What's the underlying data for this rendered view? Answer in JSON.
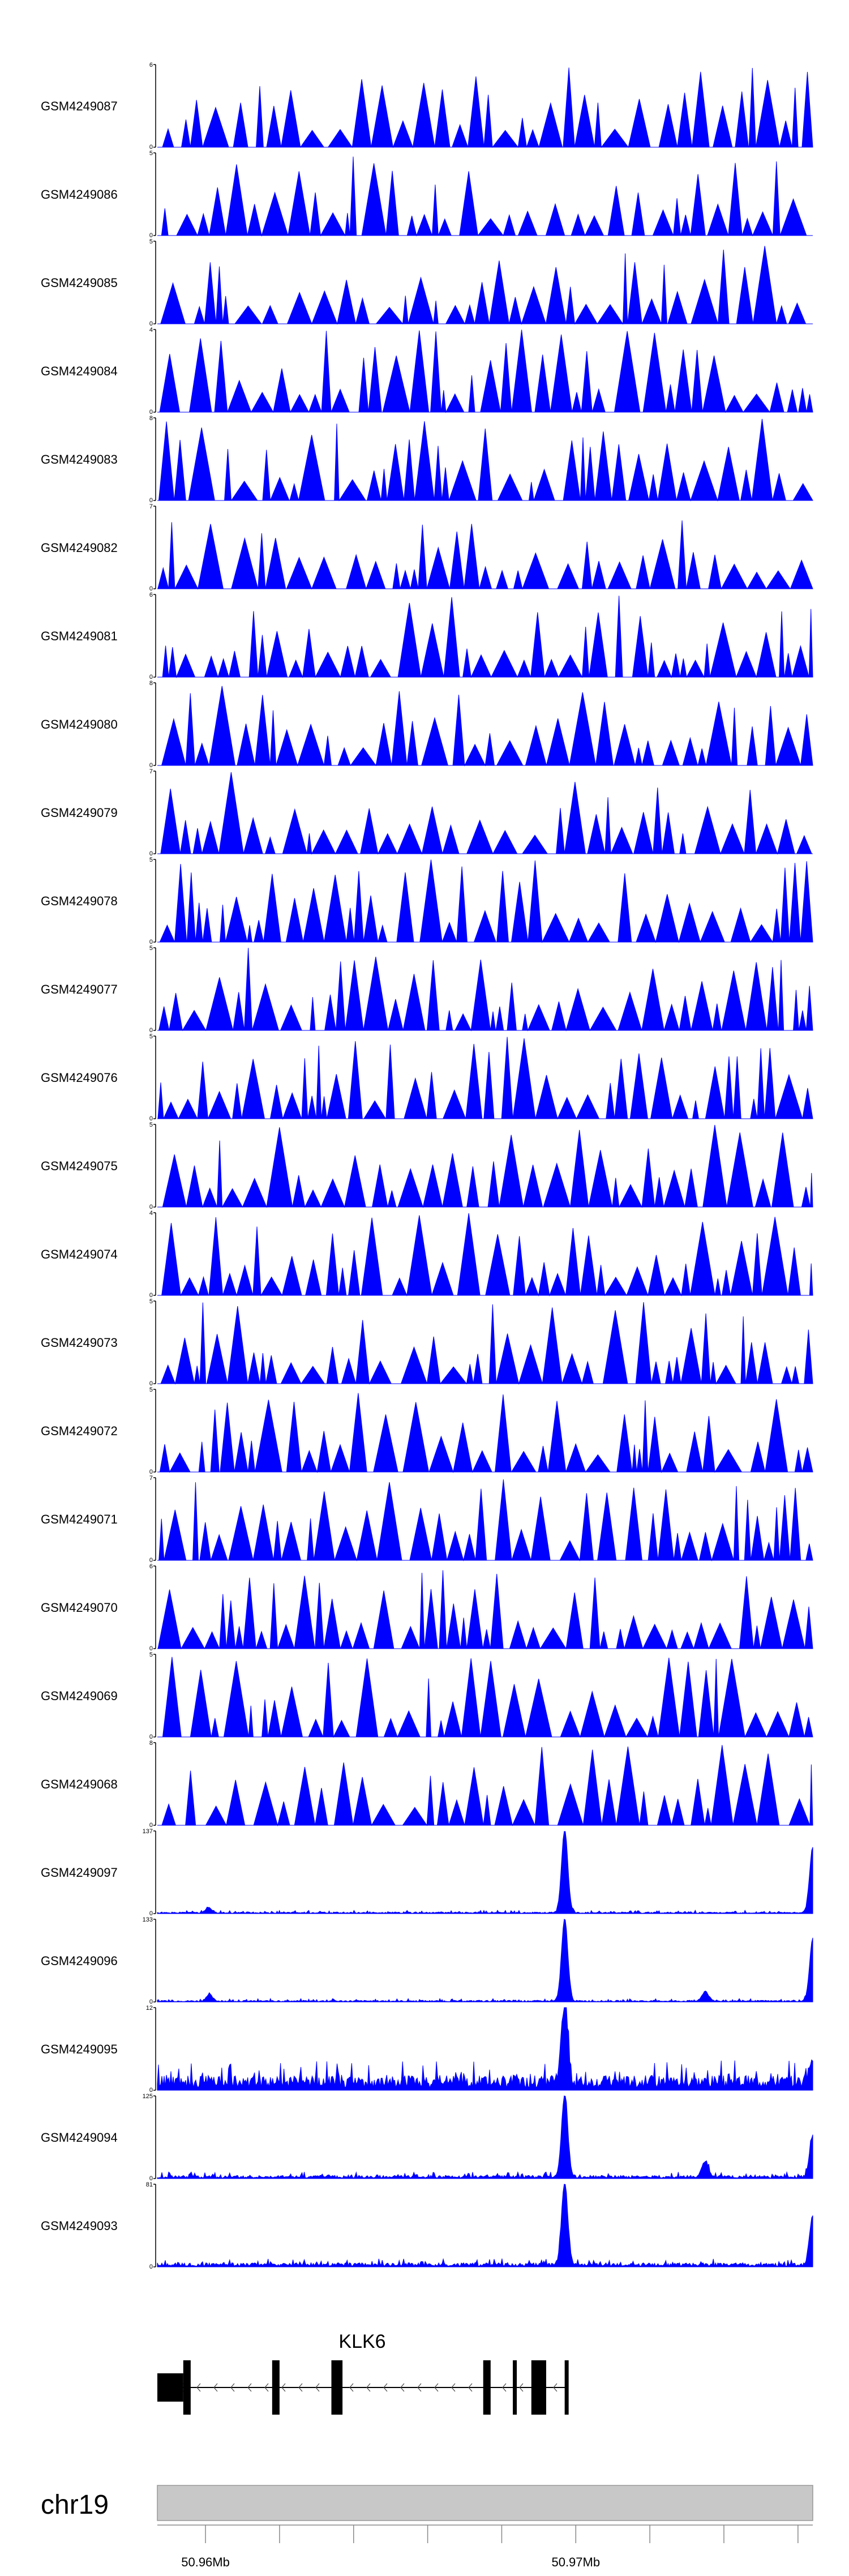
{
  "colors": {
    "signal": "#0000ff",
    "gene": "#000000",
    "ideogram": "#c8c8c8",
    "axis": "#888888"
  },
  "chart_data": {
    "type": "area",
    "tracks": [
      {
        "name": "GSM4249087",
        "ymax": "6",
        "ymin": "0",
        "style": "sparse",
        "seed": 11,
        "peak_max": 6
      },
      {
        "name": "GSM4249086",
        "ymax": "5",
        "ymin": "0",
        "style": "sparse",
        "seed": 12,
        "peak_max": 5
      },
      {
        "name": "GSM4249085",
        "ymax": "5",
        "ymin": "0",
        "style": "sparse",
        "seed": 13,
        "peak_max": 5
      },
      {
        "name": "GSM4249084",
        "ymax": "4",
        "ymin": "0",
        "style": "sparse",
        "seed": 14,
        "peak_max": 4
      },
      {
        "name": "GSM4249083",
        "ymax": "8",
        "ymin": "0",
        "style": "sparse",
        "seed": 15,
        "peak_max": 8
      },
      {
        "name": "GSM4249082",
        "ymax": "7",
        "ymin": "0",
        "style": "sparse",
        "seed": 16,
        "peak_max": 7
      },
      {
        "name": "GSM4249081",
        "ymax": "6",
        "ymin": "0",
        "style": "sparse",
        "seed": 17,
        "peak_max": 6
      },
      {
        "name": "GSM4249080",
        "ymax": "8",
        "ymin": "0",
        "style": "sparse",
        "seed": 18,
        "peak_max": 8
      },
      {
        "name": "GSM4249079",
        "ymax": "7",
        "ymin": "0",
        "style": "sparse",
        "seed": 19,
        "peak_max": 7
      },
      {
        "name": "GSM4249078",
        "ymax": "5",
        "ymin": "0",
        "style": "sparse",
        "seed": 20,
        "peak_max": 5
      },
      {
        "name": "GSM4249077",
        "ymax": "5",
        "ymin": "0",
        "style": "sparse",
        "seed": 21,
        "peak_max": 5
      },
      {
        "name": "GSM4249076",
        "ymax": "5",
        "ymin": "0",
        "style": "sparse",
        "seed": 22,
        "peak_max": 5
      },
      {
        "name": "GSM4249075",
        "ymax": "5",
        "ymin": "0",
        "style": "sparse",
        "seed": 23,
        "peak_max": 5
      },
      {
        "name": "GSM4249074",
        "ymax": "4",
        "ymin": "0",
        "style": "sparse",
        "seed": 24,
        "peak_max": 4
      },
      {
        "name": "GSM4249073",
        "ymax": "5",
        "ymin": "0",
        "style": "sparse",
        "seed": 25,
        "peak_max": 5
      },
      {
        "name": "GSM4249072",
        "ymax": "5",
        "ymin": "0",
        "style": "sparse",
        "seed": 26,
        "peak_max": 5
      },
      {
        "name": "GSM4249071",
        "ymax": "7",
        "ymin": "0",
        "style": "sparse",
        "seed": 27,
        "peak_max": 7
      },
      {
        "name": "GSM4249070",
        "ymax": "6",
        "ymin": "0",
        "style": "sparse",
        "seed": 28,
        "peak_max": 6
      },
      {
        "name": "GSM4249069",
        "ymax": "5",
        "ymin": "0",
        "style": "sparse",
        "seed": 29,
        "peak_max": 5
      },
      {
        "name": "GSM4249068",
        "ymax": "8",
        "ymin": "0",
        "style": "sparse",
        "seed": 30,
        "peak_max": 8
      },
      {
        "name": "GSM4249097",
        "ymax": "137",
        "ymin": "0",
        "style": "dense",
        "seed": 31,
        "peaks": [
          [
            50.9601,
            0.06
          ],
          [
            50.9697,
            1.0
          ],
          [
            50.9764,
            0.8
          ]
        ],
        "noise": 0.02
      },
      {
        "name": "GSM4249096",
        "ymax": "133",
        "ymin": "0",
        "style": "dense",
        "seed": 32,
        "peaks": [
          [
            50.9601,
            0.08
          ],
          [
            50.9697,
            1.0
          ],
          [
            50.9735,
            0.12
          ],
          [
            50.9764,
            0.75
          ]
        ],
        "noise": 0.02
      },
      {
        "name": "GSM4249095",
        "ymax": "12",
        "ymin": "0",
        "style": "dense",
        "seed": 33,
        "peaks": [
          [
            50.9697,
            1.0
          ],
          [
            50.9764,
            0.3
          ]
        ],
        "noise": 0.18
      },
      {
        "name": "GSM4249094",
        "ymax": "125",
        "ymin": "0",
        "style": "dense",
        "seed": 34,
        "peaks": [
          [
            50.9697,
            1.0
          ],
          [
            50.9735,
            0.2
          ],
          [
            50.9764,
            0.5
          ]
        ],
        "noise": 0.04
      },
      {
        "name": "GSM4249093",
        "ymax": "81",
        "ymin": "0",
        "style": "dense",
        "seed": 35,
        "peaks": [
          [
            50.9697,
            1.0
          ],
          [
            50.9764,
            0.6
          ]
        ],
        "noise": 0.05
      }
    ],
    "x_range": [
      50.9587,
      50.9764
    ],
    "gene": {
      "name": "KLK6",
      "strand": "-",
      "start": 50.9587,
      "end": 50.9698,
      "exons": [
        [
          50.9587,
          50.9594,
          "utr"
        ],
        [
          50.9594,
          50.9596,
          "cds"
        ],
        [
          50.9618,
          50.962,
          "cds"
        ],
        [
          50.9634,
          50.9637,
          "cds"
        ],
        [
          50.9675,
          50.9677,
          "cds"
        ],
        [
          50.9683,
          50.9684,
          "cds"
        ],
        [
          50.9688,
          50.9692,
          "cds"
        ],
        [
          50.9697,
          50.9698,
          "cds"
        ]
      ]
    },
    "chromosome": "chr19",
    "x_ticks": [
      50.96,
      50.962,
      50.964,
      50.966,
      50.968,
      50.97,
      50.972,
      50.974,
      50.976
    ],
    "x_tick_labels": [
      {
        "value": 50.96,
        "label": "50.96Mb"
      },
      {
        "value": 50.97,
        "label": "50.97Mb"
      }
    ]
  }
}
